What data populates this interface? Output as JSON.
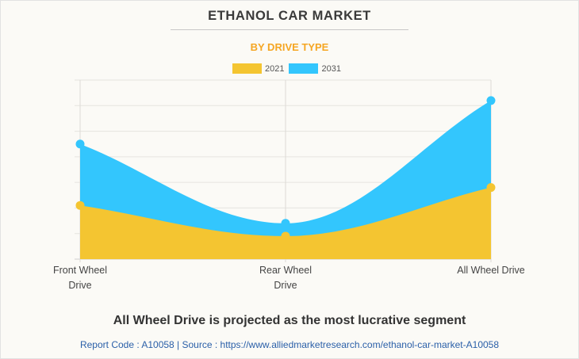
{
  "header": {
    "title": "ETHANOL CAR MARKET",
    "subtitle": "BY DRIVE TYPE"
  },
  "chart_data": {
    "type": "area",
    "title": "ETHANOL CAR MARKET",
    "subtitle": "BY DRIVE TYPE",
    "categories": [
      "Front Wheel Drive",
      "Rear Wheel Drive",
      "All Wheel Drive"
    ],
    "category_lines": [
      [
        "Front Wheel",
        "Drive"
      ],
      [
        "Rear Wheel",
        "Drive"
      ],
      [
        "All Wheel Drive"
      ]
    ],
    "series": [
      {
        "name": "2021",
        "color": "#f4c531",
        "values": [
          2.1,
          0.9,
          2.8
        ]
      },
      {
        "name": "2031",
        "color": "#33c6fd",
        "values": [
          4.5,
          1.4,
          6.2
        ]
      }
    ],
    "ylim": [
      0,
      7
    ],
    "y_gridlines": 7,
    "y_tick_labels_visible": false,
    "grid": true,
    "legend": "top-center",
    "xlabel": "",
    "ylabel": ""
  },
  "footer": {
    "headline": "All Wheel Drive is projected as the most lucrative segment",
    "source": "Report Code : A10058  |  Source : https://www.alliedmarketresearch.com/ethanol-car-market-A10058"
  }
}
